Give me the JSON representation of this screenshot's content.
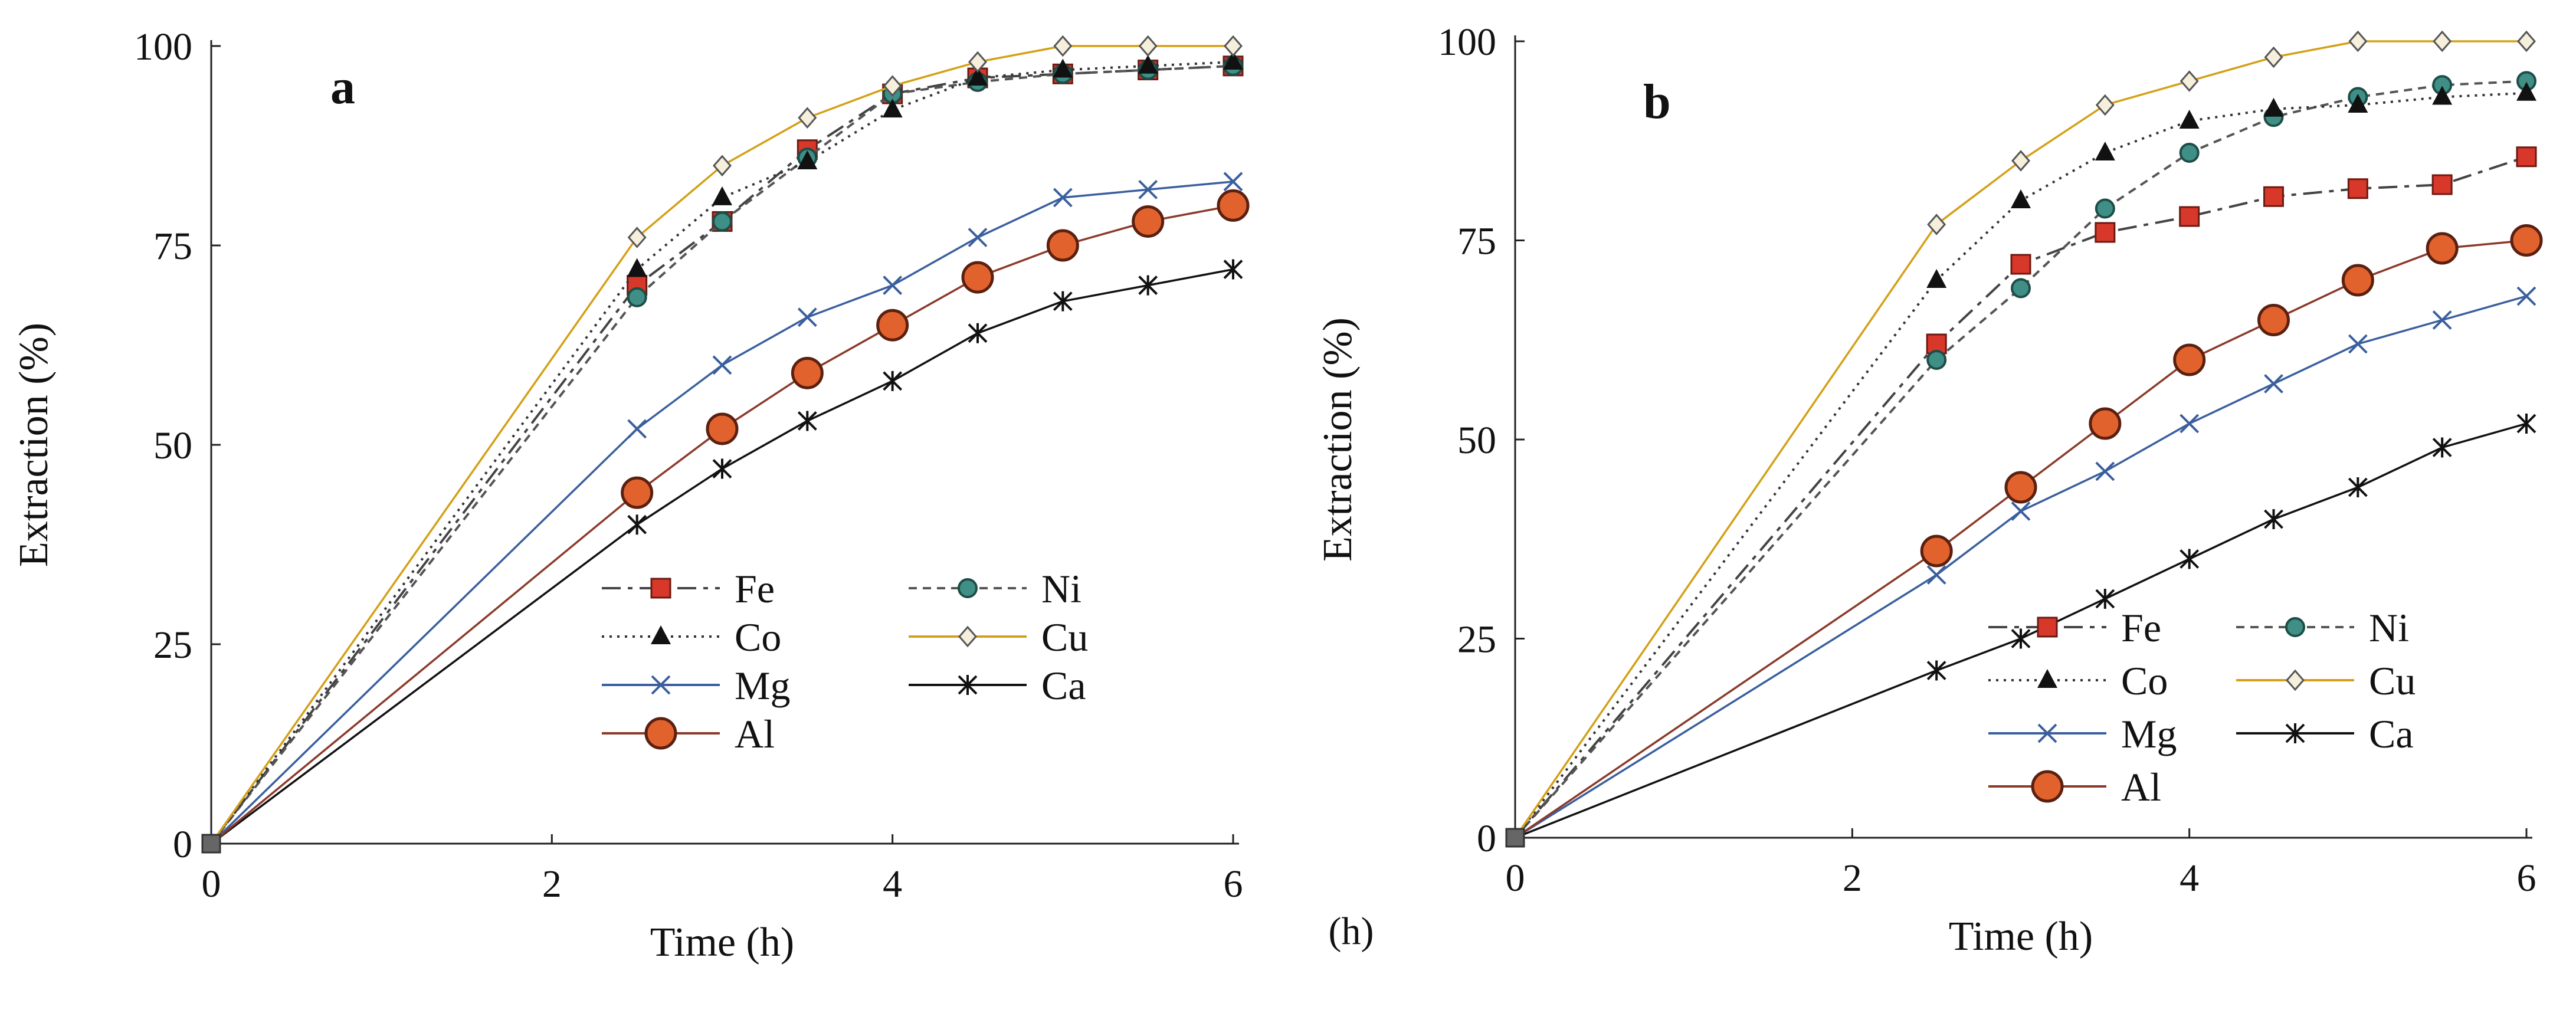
{
  "figure": {
    "stray_label": "(h)"
  },
  "chart_data": [
    {
      "type": "line",
      "panel_label": "a",
      "xlabel": "Time (h)",
      "ylabel": "Extraction  (%)",
      "xlim": [
        0,
        6
      ],
      "ylim": [
        0,
        100
      ],
      "xticks": [
        "0",
        "2",
        "4",
        "6"
      ],
      "yticks": [
        "0",
        "25",
        "50",
        "75",
        "100"
      ],
      "legend_location": "lower-right",
      "series": [
        {
          "name": "Fe",
          "color": "#444444",
          "dash": "long-dash",
          "marker": "square-red",
          "x": [
            0,
            2.5,
            3,
            3.5,
            4,
            4.5,
            5,
            5.5,
            6
          ],
          "values": [
            0,
            70,
            78,
            87,
            94,
            96,
            96.5,
            97,
            97.5
          ]
        },
        {
          "name": "Ni",
          "color": "#555555",
          "dash": "dash",
          "marker": "circle-teal",
          "x": [
            0,
            2.5,
            3,
            3.5,
            4,
            4.5,
            5,
            5.5,
            6
          ],
          "values": [
            0,
            68.5,
            78,
            86,
            94,
            95.5,
            96.5,
            97,
            97.5
          ]
        },
        {
          "name": "Co",
          "color": "#333333",
          "dash": "dotted",
          "marker": "triangle",
          "x": [
            0,
            2.5,
            3,
            3.5,
            4,
            4.5,
            5,
            5.5,
            6
          ],
          "values": [
            0,
            72,
            81,
            85.5,
            92,
            96,
            97,
            97.5,
            98
          ]
        },
        {
          "name": "Cu",
          "color": "#d4a017",
          "dash": "solid",
          "marker": "diamond",
          "x": [
            0,
            2.5,
            3,
            3.5,
            4,
            4.5,
            5,
            5.5,
            6
          ],
          "values": [
            0,
            76,
            85,
            91,
            95,
            98,
            100,
            100,
            100
          ]
        },
        {
          "name": "Mg",
          "color": "#3a5f9e",
          "dash": "solid",
          "marker": "x",
          "x": [
            0,
            2.5,
            3,
            3.5,
            4,
            4.5,
            5,
            5.5,
            6
          ],
          "values": [
            0,
            52,
            60,
            66,
            70,
            76,
            81,
            82,
            83
          ]
        },
        {
          "name": "Ca",
          "color": "#111111",
          "dash": "solid",
          "marker": "asterisk",
          "x": [
            0,
            2.5,
            3,
            3.5,
            4,
            4.5,
            5,
            5.5,
            6
          ],
          "values": [
            0,
            40,
            47,
            53,
            58,
            64,
            68,
            70,
            72
          ]
        },
        {
          "name": "Al",
          "color": "#8b3a2a",
          "dash": "solid",
          "marker": "circle-orange",
          "x": [
            0,
            2.5,
            3,
            3.5,
            4,
            4.5,
            5,
            5.5,
            6
          ],
          "values": [
            0,
            44,
            52,
            59,
            65,
            71,
            75,
            78,
            80
          ]
        }
      ]
    },
    {
      "type": "line",
      "panel_label": "b",
      "xlabel": "Time (h)",
      "ylabel": "Extraction  (%)",
      "xlim": [
        0,
        6
      ],
      "ylim": [
        0,
        100
      ],
      "xticks": [
        "0",
        "2",
        "4",
        "6"
      ],
      "yticks": [
        "0",
        "25",
        "50",
        "75",
        "100"
      ],
      "legend_location": "lower-right",
      "series": [
        {
          "name": "Fe",
          "color": "#444444",
          "dash": "long-dash",
          "marker": "square-red",
          "x": [
            0,
            2.5,
            3,
            3.5,
            4,
            4.5,
            5,
            5.5,
            6
          ],
          "values": [
            0,
            62,
            72,
            76,
            78,
            80.5,
            81.5,
            82,
            85.5
          ]
        },
        {
          "name": "Ni",
          "color": "#555555",
          "dash": "dash",
          "marker": "circle-teal",
          "x": [
            0,
            2.5,
            3,
            3.5,
            4,
            4.5,
            5,
            5.5,
            6
          ],
          "values": [
            0,
            60,
            69,
            79,
            86,
            90.5,
            93,
            94.5,
            95
          ]
        },
        {
          "name": "Co",
          "color": "#333333",
          "dash": "dotted",
          "marker": "triangle",
          "x": [
            0,
            2.5,
            3,
            3.5,
            4,
            4.5,
            5,
            5.5,
            6
          ],
          "values": [
            0,
            70,
            80,
            86,
            90,
            91.5,
            92,
            93,
            93.5
          ]
        },
        {
          "name": "Cu",
          "color": "#d4a017",
          "dash": "solid",
          "marker": "diamond",
          "x": [
            0,
            2.5,
            3,
            3.5,
            4,
            4.5,
            5,
            5.5,
            6
          ],
          "values": [
            0,
            77,
            85,
            92,
            95,
            98,
            100,
            100,
            100
          ]
        },
        {
          "name": "Mg",
          "color": "#3a5f9e",
          "dash": "solid",
          "marker": "x",
          "x": [
            0,
            2.5,
            3,
            3.5,
            4,
            4.5,
            5,
            5.5,
            6
          ],
          "values": [
            0,
            33,
            41,
            46,
            52,
            57,
            62,
            65,
            68
          ]
        },
        {
          "name": "Ca",
          "color": "#111111",
          "dash": "solid",
          "marker": "asterisk",
          "x": [
            0,
            2.5,
            3,
            3.5,
            4,
            4.5,
            5,
            5.5,
            6
          ],
          "values": [
            0,
            21,
            25,
            30,
            35,
            40,
            44,
            49,
            52
          ]
        },
        {
          "name": "Al",
          "color": "#8b3a2a",
          "dash": "solid",
          "marker": "circle-orange",
          "x": [
            0,
            2.5,
            3,
            3.5,
            4,
            4.5,
            5,
            5.5,
            6
          ],
          "values": [
            0,
            36,
            44,
            52,
            60,
            65,
            70,
            74,
            75
          ]
        }
      ]
    }
  ]
}
